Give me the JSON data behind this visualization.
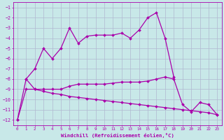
{
  "xlabel": "Windchill (Refroidissement éolien,°C)",
  "hours": [
    0,
    1,
    2,
    3,
    4,
    5,
    6,
    7,
    8,
    9,
    10,
    11,
    12,
    13,
    14,
    15,
    16,
    17,
    18,
    19,
    20,
    21,
    22,
    23
  ],
  "curve1_x": [
    0,
    1,
    2,
    3,
    4,
    5,
    6,
    7,
    8,
    9,
    10,
    11,
    12,
    13,
    14,
    15,
    16,
    17,
    18
  ],
  "curve1_y": [
    -12,
    -8,
    -7,
    -5,
    -6,
    -5,
    -3,
    -4.5,
    -3.8,
    -3.7,
    -3.7,
    -3.7,
    -3.5,
    -4,
    -3.2,
    -2,
    -1.5,
    -4,
    -7.8
  ],
  "curve2_x": [
    1,
    2,
    3,
    4,
    5,
    6,
    7,
    8,
    9,
    10,
    11,
    12,
    13,
    14,
    15,
    16,
    17,
    18,
    19,
    20,
    21,
    22,
    23
  ],
  "curve2_y": [
    -8,
    -9,
    -9,
    -9,
    -9,
    -8.7,
    -8.5,
    -8.5,
    -8.5,
    -8.5,
    -8.4,
    -8.3,
    -8.3,
    -8.3,
    -8.2,
    -8.0,
    -7.8,
    -8.0,
    -10.5,
    -11.2,
    -10.3,
    -10.5,
    -11.5
  ],
  "curve3_x": [
    0,
    1,
    2,
    3,
    4,
    5,
    6,
    7,
    8,
    9,
    10,
    11,
    12,
    13,
    14,
    15,
    16,
    17,
    18,
    19,
    20,
    21,
    22,
    23
  ],
  "curve3_y": [
    -12,
    -9,
    -9,
    -9.2,
    -9.4,
    -9.5,
    -9.7,
    -9.8,
    -9.9,
    -10,
    -10.1,
    -10.2,
    -10.3,
    -10.4,
    -10.5,
    -10.6,
    -10.7,
    -10.8,
    -10.9,
    -11,
    -11.1,
    -11.2,
    -11.3,
    -11.5
  ],
  "color": "#aa00aa",
  "bg_color": "#c8e8e8",
  "grid_color": "#b0b8d0",
  "ylim": [
    -12.5,
    -0.5
  ],
  "xlim": [
    -0.5,
    23.5
  ],
  "yticks": [
    -12,
    -11,
    -10,
    -9,
    -8,
    -7,
    -6,
    -5,
    -4,
    -3,
    -2,
    -1
  ],
  "xticks": [
    0,
    1,
    2,
    3,
    4,
    5,
    6,
    7,
    8,
    9,
    10,
    11,
    12,
    13,
    14,
    15,
    16,
    17,
    18,
    19,
    20,
    21,
    22,
    23
  ]
}
